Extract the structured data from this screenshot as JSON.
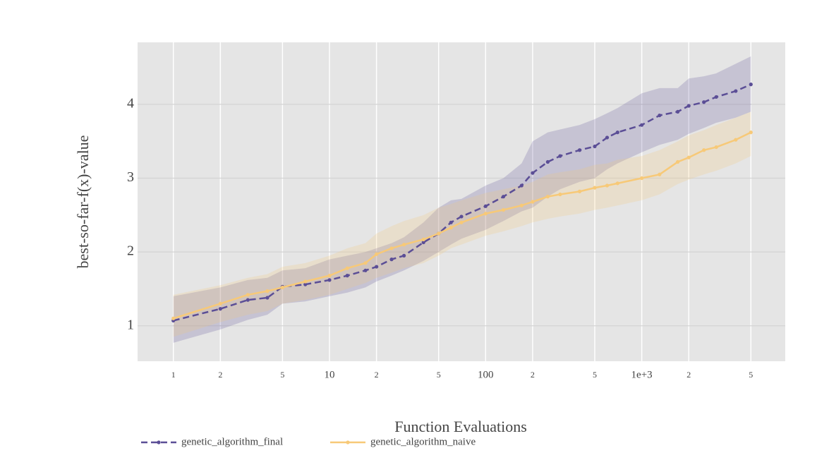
{
  "chart_data": {
    "type": "line",
    "x_label": "Function Evaluations",
    "y_label": "best-so-far-f(x)-value",
    "xscale": "log",
    "grid": true,
    "legend": "bottom",
    "xlim": [
      0.59,
      8300
    ],
    "ylim": [
      0.52,
      4.84
    ],
    "xticks": [
      1,
      2,
      5,
      10,
      {
        "value": 20,
        "label": "2"
      },
      {
        "value": 50,
        "label": "5"
      },
      100,
      {
        "value": 200,
        "label": "2"
      },
      {
        "value": 500,
        "label": "5"
      },
      {
        "value": 1000,
        "label": "1e+3"
      },
      {
        "value": 2000,
        "label": "2"
      },
      {
        "value": 5000,
        "label": "5"
      }
    ],
    "yticks": [
      1,
      2,
      3,
      4
    ],
    "x": [
      1,
      2,
      3,
      4,
      5,
      7,
      10,
      13,
      17,
      20,
      25,
      30,
      40,
      50,
      60,
      70,
      100,
      130,
      170,
      200,
      250,
      300,
      400,
      500,
      600,
      700,
      1000,
      1300,
      1700,
      2000,
      2500,
      3000,
      4000,
      5000
    ],
    "series": [
      {
        "name": "genetic_algorithm_final",
        "color": "#5b4e96",
        "dash": true,
        "values": [
          1.07,
          1.23,
          1.35,
          1.38,
          1.53,
          1.56,
          1.62,
          1.68,
          1.75,
          1.8,
          1.9,
          1.95,
          2.13,
          2.25,
          2.4,
          2.48,
          2.62,
          2.75,
          2.9,
          3.07,
          3.22,
          3.3,
          3.38,
          3.43,
          3.55,
          3.62,
          3.72,
          3.85,
          3.9,
          3.98,
          4.03,
          4.1,
          4.18,
          4.27
        ],
        "lower": [
          0.77,
          0.95,
          1.08,
          1.15,
          1.3,
          1.33,
          1.4,
          1.45,
          1.52,
          1.6,
          1.68,
          1.75,
          1.88,
          2.0,
          2.1,
          2.18,
          2.3,
          2.42,
          2.55,
          2.6,
          2.75,
          2.85,
          2.95,
          3.0,
          3.12,
          3.2,
          3.35,
          3.45,
          3.52,
          3.6,
          3.68,
          3.75,
          3.82,
          3.9
        ],
        "upper": [
          1.4,
          1.52,
          1.62,
          1.65,
          1.75,
          1.78,
          1.9,
          1.95,
          2.0,
          2.05,
          2.12,
          2.2,
          2.4,
          2.6,
          2.7,
          2.72,
          2.9,
          3.0,
          3.2,
          3.5,
          3.62,
          3.66,
          3.72,
          3.8,
          3.88,
          3.95,
          4.15,
          4.22,
          4.22,
          4.35,
          4.38,
          4.42,
          4.55,
          4.65
        ]
      },
      {
        "name": "genetic_algorithm_naive",
        "color": "#f7c978",
        "dash": false,
        "values": [
          1.1,
          1.3,
          1.42,
          1.47,
          1.52,
          1.6,
          1.68,
          1.78,
          1.85,
          1.97,
          2.05,
          2.1,
          2.17,
          2.25,
          2.33,
          2.4,
          2.52,
          2.57,
          2.63,
          2.68,
          2.75,
          2.78,
          2.82,
          2.87,
          2.9,
          2.93,
          3.0,
          3.05,
          3.22,
          3.28,
          3.38,
          3.42,
          3.52,
          3.62
        ],
        "lower": [
          0.85,
          1.05,
          1.15,
          1.2,
          1.3,
          1.35,
          1.42,
          1.5,
          1.58,
          1.65,
          1.72,
          1.78,
          1.85,
          1.95,
          2.05,
          2.1,
          2.22,
          2.28,
          2.35,
          2.4,
          2.45,
          2.48,
          2.52,
          2.57,
          2.6,
          2.63,
          2.7,
          2.78,
          2.92,
          2.98,
          3.05,
          3.1,
          3.2,
          3.3
        ],
        "upper": [
          1.42,
          1.55,
          1.65,
          1.7,
          1.8,
          1.85,
          1.95,
          2.05,
          2.12,
          2.25,
          2.35,
          2.42,
          2.5,
          2.6,
          2.65,
          2.7,
          2.8,
          2.85,
          2.9,
          2.95,
          3.05,
          3.08,
          3.12,
          3.18,
          3.2,
          3.25,
          3.3,
          3.38,
          3.5,
          3.58,
          3.65,
          3.72,
          3.82,
          3.9
        ]
      }
    ]
  }
}
